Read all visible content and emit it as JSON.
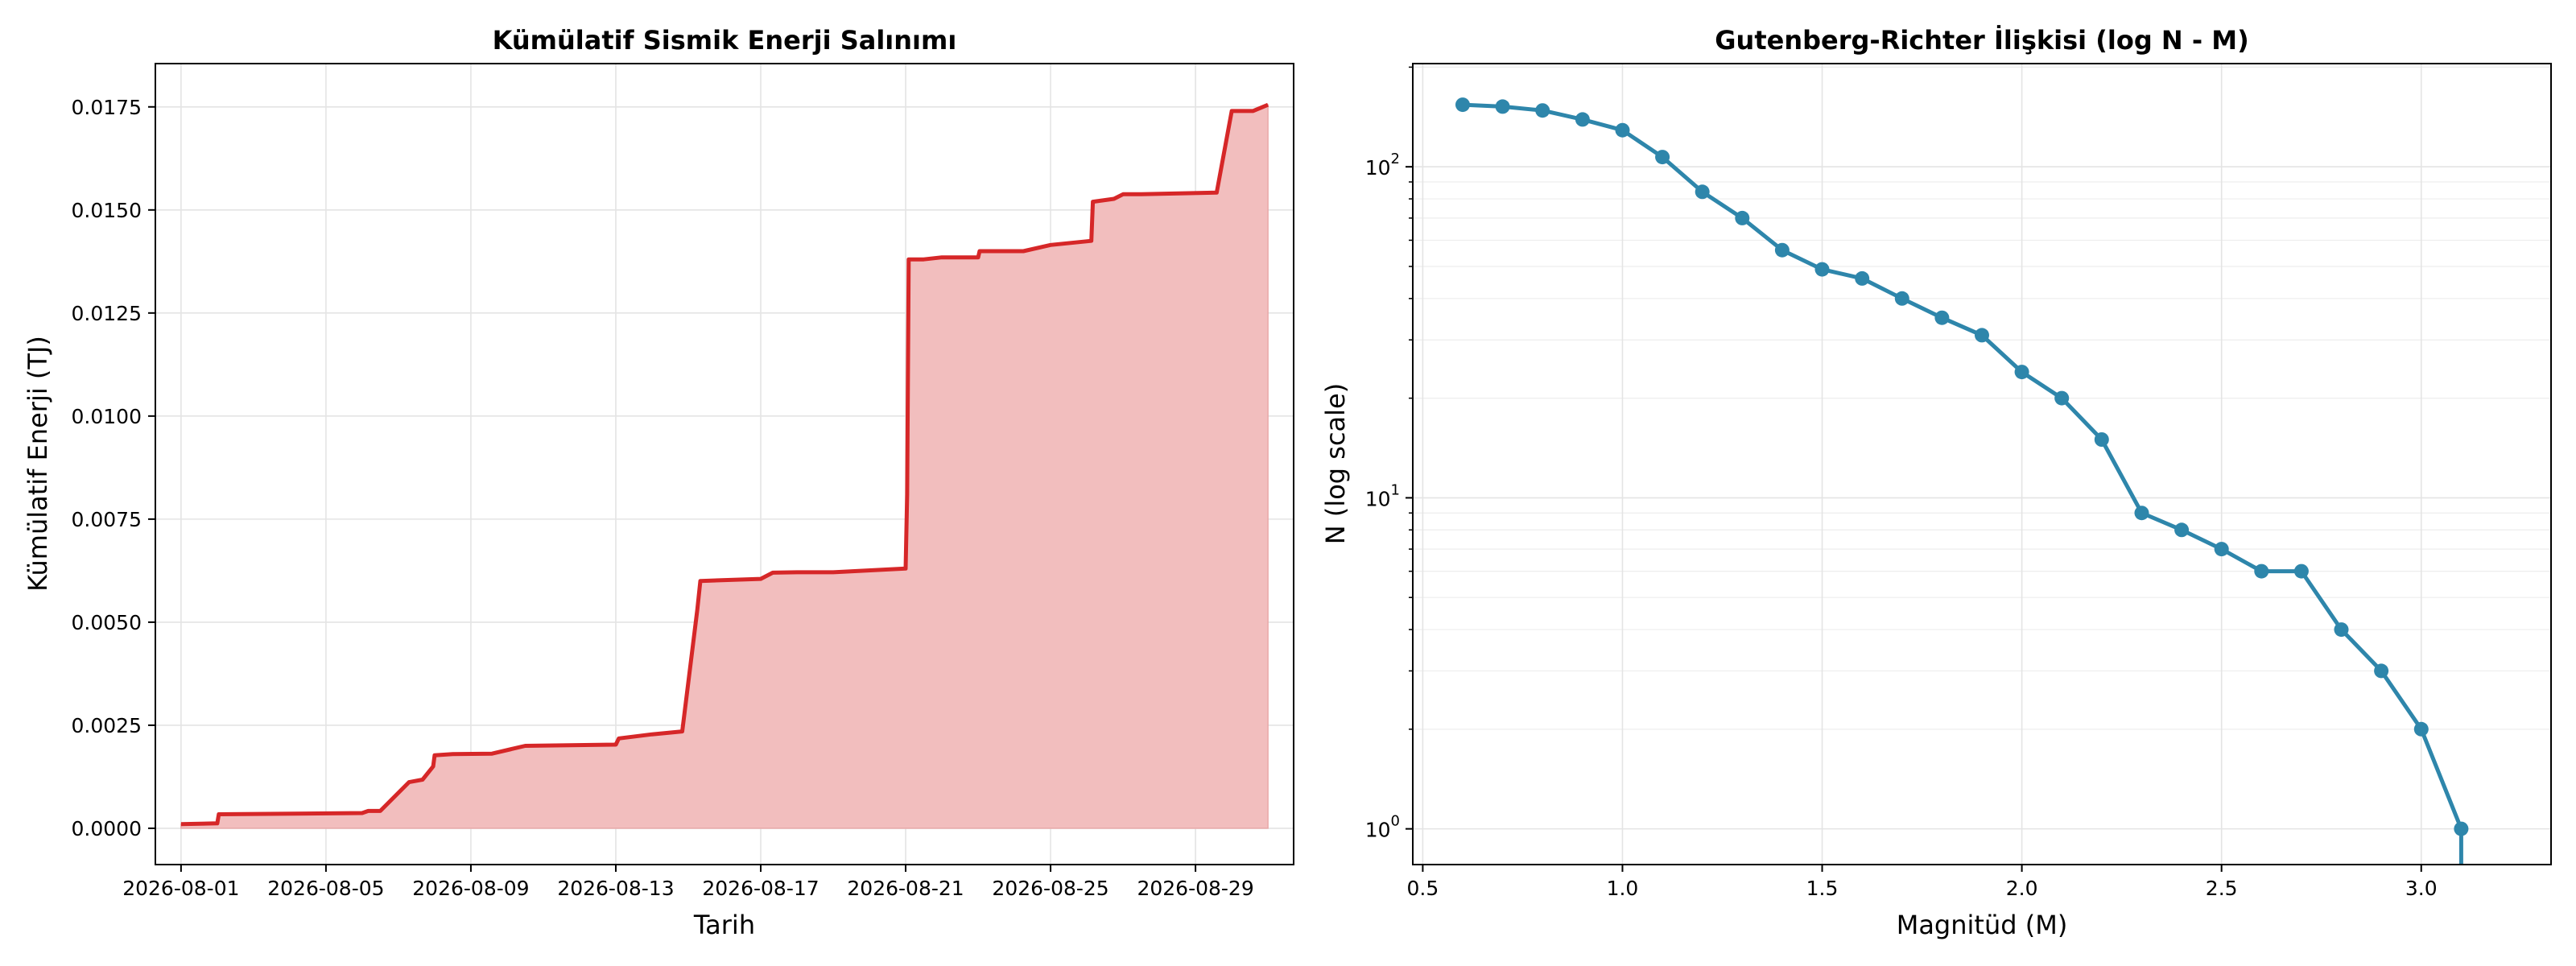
{
  "chart_data": [
    {
      "type": "area",
      "title": "Kümülatif Sismik Enerji Salınımı",
      "xlabel": "Tarih",
      "ylabel": "Kümülatif Enerji (TJ)",
      "x_ticks": [
        "2026-08-01",
        "2026-08-05",
        "2026-08-09",
        "2026-08-13",
        "2026-08-17",
        "2026-08-21",
        "2026-08-25",
        "2026-08-29"
      ],
      "y_ticks": [
        "0.0000",
        "0.0025",
        "0.0050",
        "0.0075",
        "0.0100",
        "0.0125",
        "0.0150",
        "0.0175"
      ],
      "xlim": [
        "2025-07-29T07:00",
        "2026-08-31T17:00"
      ],
      "ylim": [
        -0.00088,
        0.01855
      ],
      "grid": true,
      "line_color": "#d62728",
      "fill_color": "#f2bebe",
      "series": [
        {
          "points": [
            [
              "2026-08-01T00:00",
              0.0001
            ],
            [
              "2026-08-02T00:00",
              0.00012
            ],
            [
              "2026-08-02T01:00",
              0.00034
            ],
            [
              "2026-08-06T00:00",
              0.00037
            ],
            [
              "2026-08-06T04:00",
              0.00042
            ],
            [
              "2026-08-06T12:00",
              0.00042
            ],
            [
              "2026-08-07T07:00",
              0.00112
            ],
            [
              "2026-08-07T16:00",
              0.00118
            ],
            [
              "2026-08-07T23:00",
              0.0015
            ],
            [
              "2026-08-08T00:00",
              0.00177
            ],
            [
              "2026-08-08T12:00",
              0.0018
            ],
            [
              "2026-08-09T14:00",
              0.00181
            ],
            [
              "2026-08-10T12:00",
              0.002
            ],
            [
              "2026-08-13T00:00",
              0.00203
            ],
            [
              "2026-08-13T02:00",
              0.00218
            ],
            [
              "2026-08-14T00:00",
              0.00228
            ],
            [
              "2026-08-14T20:00",
              0.00235
            ],
            [
              "2026-08-15T06:00",
              0.0053
            ],
            [
              "2026-08-15T08:00",
              0.006
            ],
            [
              "2026-08-17T00:00",
              0.00605
            ],
            [
              "2026-08-17T08:00",
              0.0062
            ],
            [
              "2026-08-18T00:00",
              0.00621
            ],
            [
              "2026-08-19T00:00",
              0.00621
            ],
            [
              "2026-08-21T00:00",
              0.0063
            ],
            [
              "2026-08-21T01:00",
              0.0081
            ],
            [
              "2026-08-21T02:00",
              0.0138
            ],
            [
              "2026-08-21T12:00",
              0.0138
            ],
            [
              "2026-08-22T00:00",
              0.01385
            ],
            [
              "2026-08-23T00:00",
              0.01385
            ],
            [
              "2026-08-23T01:00",
              0.014
            ],
            [
              "2026-08-24T06:00",
              0.014
            ],
            [
              "2026-08-25T00:00",
              0.01415
            ],
            [
              "2026-08-26T03:00",
              0.01425
            ],
            [
              "2026-08-26T04:00",
              0.0152
            ],
            [
              "2026-08-26T18:00",
              0.01527
            ],
            [
              "2026-08-27T00:00",
              0.01538
            ],
            [
              "2026-08-27T12:00",
              0.01538
            ],
            [
              "2026-08-29T14:00",
              0.01542
            ],
            [
              "2026-08-30T00:00",
              0.0174
            ],
            [
              "2026-08-30T14:00",
              0.0174
            ],
            [
              "2026-08-31T00:00",
              0.01755
            ]
          ]
        }
      ]
    },
    {
      "type": "line",
      "title": "Gutenberg-Richter İlişkisi (log N - M)",
      "xlabel": "Magnitüd (M)",
      "ylabel": "N (log scale)",
      "y_scale": "log",
      "x_ticks": [
        "0.5",
        "1.0",
        "1.5",
        "2.0",
        "2.5",
        "3.0"
      ],
      "y_ticks": [
        {
          "base": "10",
          "exp": "0"
        },
        {
          "base": "10",
          "exp": "1"
        },
        {
          "base": "10",
          "exp": "2"
        }
      ],
      "xlim": [
        0.475,
        3.325
      ],
      "ylim": [
        0.78,
        205
      ],
      "grid": true,
      "line_color": "#2e86ab",
      "series": [
        {
          "x": [
            0.6,
            0.7,
            0.8,
            0.9,
            1.0,
            1.1,
            1.2,
            1.3,
            1.4,
            1.5,
            1.6,
            1.7,
            1.8,
            1.9,
            2.0,
            2.1,
            2.2,
            2.3,
            2.4,
            2.5,
            2.6,
            2.7,
            2.8,
            2.9,
            3.0,
            3.1
          ],
          "y": [
            154,
            152,
            148,
            139,
            129,
            107,
            84,
            70,
            56,
            49,
            46,
            40,
            35,
            31,
            24,
            20,
            15,
            9,
            8,
            7,
            6,
            6,
            4,
            3,
            2,
            1
          ]
        }
      ]
    }
  ]
}
